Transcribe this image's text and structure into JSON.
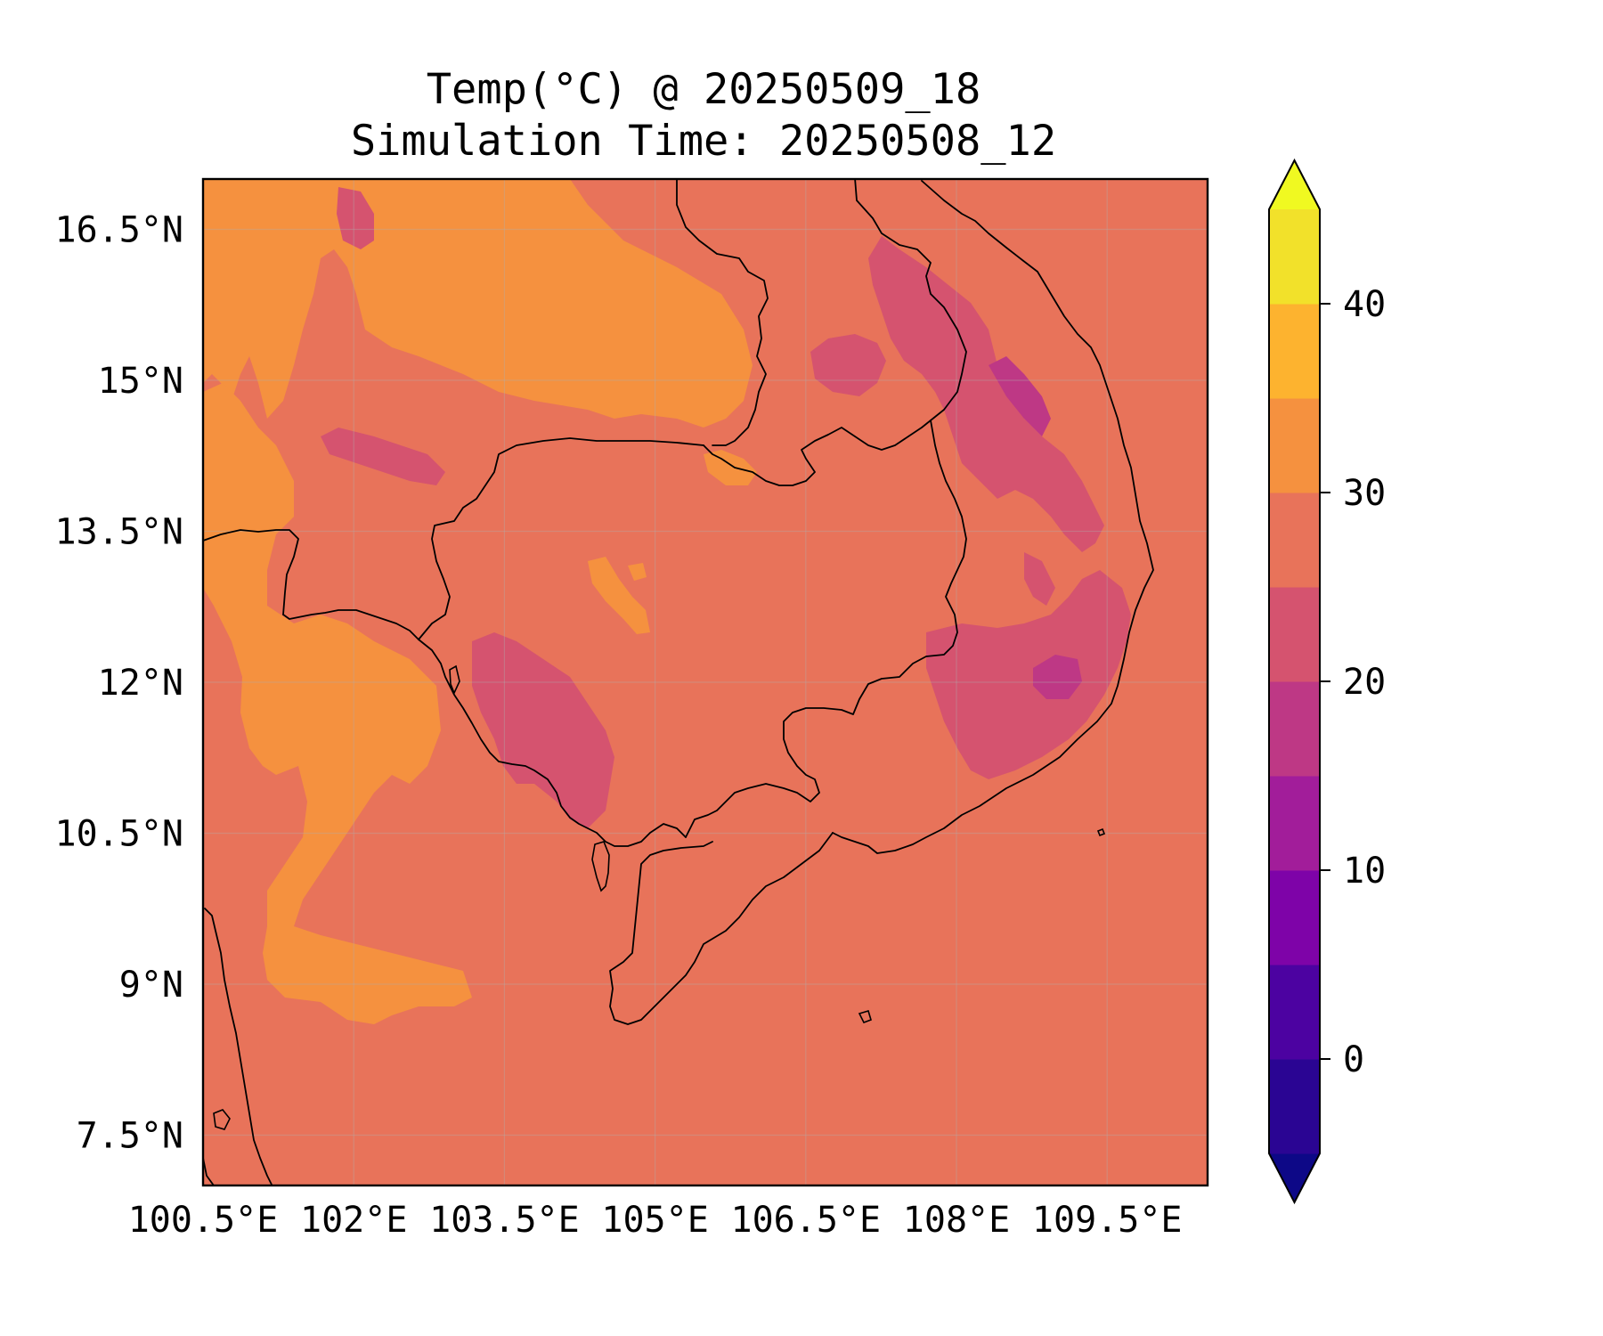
{
  "title": {
    "line1": "Temp(°C) @ 20250509_18",
    "line2": "Simulation Time: 20250508_12"
  },
  "map": {
    "lon_range": [
      100.5,
      110.5
    ],
    "lat_range": [
      7.0,
      17.0
    ],
    "x_ticks": [
      {
        "value": 100.5,
        "label": "100.5°E"
      },
      {
        "value": 102.0,
        "label": "102°E"
      },
      {
        "value": 103.5,
        "label": "103.5°E"
      },
      {
        "value": 105.0,
        "label": "105°E"
      },
      {
        "value": 106.5,
        "label": "106.5°E"
      },
      {
        "value": 108.0,
        "label": "108°E"
      },
      {
        "value": 109.5,
        "label": "109.5°E"
      }
    ],
    "y_ticks": [
      {
        "value": 16.5,
        "label": "16.5°N"
      },
      {
        "value": 15.0,
        "label": "15°N"
      },
      {
        "value": 13.5,
        "label": "13.5°N"
      },
      {
        "value": 12.0,
        "label": "12°N"
      },
      {
        "value": 10.5,
        "label": "10.5°N"
      },
      {
        "value": 9.0,
        "label": "9°N"
      },
      {
        "value": 7.5,
        "label": "7.5°N"
      }
    ],
    "gridlines": true,
    "background_level_color": "#e8735a"
  },
  "colorbar": {
    "colormap": "plasma",
    "extend": "both",
    "levels": [
      -5,
      0,
      5,
      10,
      15,
      20,
      25,
      30,
      35,
      40,
      45
    ],
    "colors": [
      "#0d0887",
      "#2a0593",
      "#4c02a1",
      "#7e03a8",
      "#a21d9a",
      "#be3885",
      "#d5536f",
      "#e8735a",
      "#f5913f",
      "#fdb32f",
      "#f2e12a",
      "#f0f921"
    ],
    "tick_values": [
      0,
      10,
      20,
      30,
      40
    ],
    "tick_labels": [
      "0",
      "10",
      "20",
      "30",
      "40"
    ]
  }
}
